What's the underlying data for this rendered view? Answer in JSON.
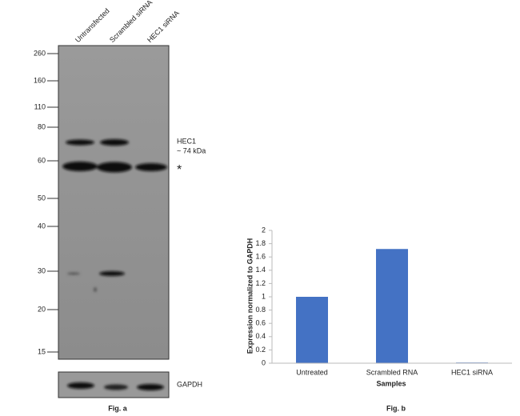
{
  "blot": {
    "lanes": [
      "Untransfected",
      "Scrambled siRNA",
      "HEC1 siRNA"
    ],
    "markers": [
      260,
      160,
      110,
      80,
      60,
      50,
      40,
      30,
      20,
      15
    ],
    "target_name": "HEC1",
    "target_size": "~ 74 kDa",
    "nonspecific_mark": "*",
    "loading_control": "GAPDH",
    "caption": "Fig. a"
  },
  "chart_data": {
    "type": "bar",
    "categories": [
      "Untreated",
      "Scrambled RNA",
      "HEC1 siRNA"
    ],
    "values": [
      1,
      1.72,
      0.01
    ],
    "color": "#4472c4",
    "ylim": [
      0,
      2
    ],
    "yticks": [
      0,
      0.2,
      0.4,
      0.6,
      0.8,
      1,
      1.2,
      1.4,
      1.6,
      1.8,
      2
    ],
    "xlabel": "Samples",
    "ylabel": "Expression normalized to GAPDH",
    "grid": false,
    "caption": "Fig. b"
  }
}
